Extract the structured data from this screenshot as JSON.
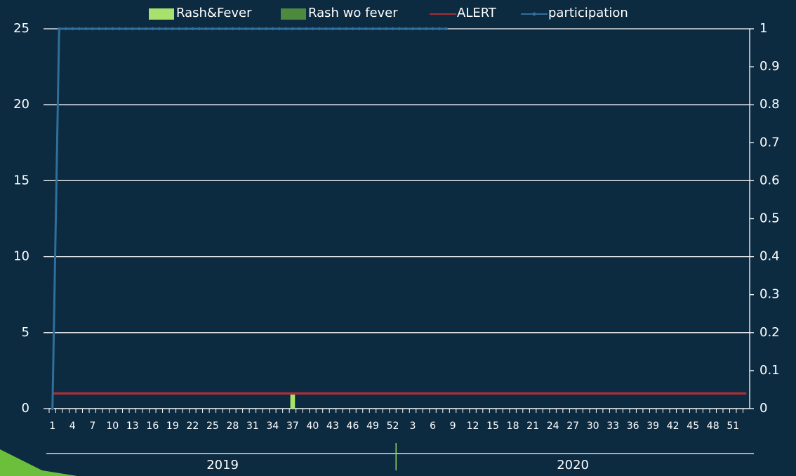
{
  "chart_data": {
    "type": "bar",
    "categories": [
      "1",
      null,
      null,
      "4",
      null,
      null,
      "7",
      null,
      null,
      "10",
      null,
      null,
      "13",
      null,
      null,
      "16",
      null,
      null,
      "19",
      null,
      null,
      "22",
      null,
      null,
      "25",
      null,
      null,
      "28",
      null,
      null,
      "31",
      null,
      null,
      "34",
      null,
      null,
      "37",
      null,
      null,
      "40",
      null,
      null,
      "43",
      null,
      null,
      "46",
      null,
      null,
      "49",
      null,
      null,
      "52",
      null,
      null,
      "3",
      null,
      null,
      "6",
      null,
      null,
      "9",
      null,
      null,
      "12",
      null,
      null,
      "15",
      null,
      null,
      "18",
      null,
      null,
      "21",
      null,
      null,
      "24",
      null,
      null,
      "27",
      null,
      null,
      "30",
      null,
      null,
      "33",
      null,
      null,
      "36",
      null,
      null,
      "39",
      null,
      null,
      "42",
      null,
      null,
      "45",
      null,
      null,
      "48",
      null,
      null,
      "51",
      null,
      null
    ],
    "groups": [
      {
        "label": "2019",
        "size": 52
      },
      {
        "label": "2020",
        "size": 53
      }
    ],
    "series": [
      {
        "name": "Rash&Fever",
        "type": "bar",
        "color": "#a8e26c",
        "values": [
          0,
          0,
          0,
          0,
          0,
          0,
          0,
          0,
          0,
          0,
          0,
          0,
          0,
          0,
          0,
          0,
          0,
          0,
          0,
          0,
          0,
          0,
          0,
          0,
          0,
          0,
          0,
          0,
          0,
          0,
          0,
          0,
          0,
          0,
          0,
          0,
          1,
          0,
          0,
          0,
          0,
          0,
          0,
          0,
          0,
          0,
          0,
          0,
          0,
          0,
          0,
          0,
          0,
          0,
          0,
          0,
          0,
          0,
          0,
          0,
          0,
          0,
          0,
          0,
          0,
          0,
          0,
          0,
          0,
          0,
          0,
          0,
          0,
          0,
          0,
          0,
          0,
          0,
          0,
          0,
          0,
          0,
          0,
          0,
          0,
          0,
          0,
          0,
          0,
          0,
          0,
          0,
          0,
          0,
          0,
          0,
          0,
          0,
          0,
          0,
          0,
          0,
          0,
          0,
          0
        ]
      },
      {
        "name": "Rash wo fever",
        "type": "bar",
        "color": "#4e8a3e",
        "values": [
          0,
          0,
          0,
          0,
          0,
          0,
          0,
          0,
          0,
          0,
          0,
          0,
          0,
          0,
          0,
          0,
          0,
          0,
          0,
          0,
          0,
          0,
          0,
          0,
          0,
          0,
          0,
          0,
          0,
          0,
          0,
          0,
          0,
          0,
          0,
          0,
          0,
          0,
          0,
          0,
          0,
          0,
          0,
          0,
          0,
          0,
          0,
          0,
          0,
          0,
          0,
          0,
          0,
          0,
          0,
          0,
          0,
          0,
          0,
          0,
          0,
          0,
          0,
          0,
          0,
          0,
          0,
          0,
          0,
          0,
          0,
          0,
          0,
          0,
          0,
          0,
          0,
          0,
          0,
          0,
          0,
          0,
          0,
          0,
          0,
          0,
          0,
          0,
          0,
          0,
          0,
          0,
          0,
          0,
          0,
          0,
          0,
          0,
          0,
          0,
          0,
          0,
          0,
          0,
          0
        ]
      },
      {
        "name": "ALERT",
        "type": "line",
        "color": "#a3303a",
        "values": [
          1,
          1,
          1,
          1,
          1,
          1,
          1,
          1,
          1,
          1,
          1,
          1,
          1,
          1,
          1,
          1,
          1,
          1,
          1,
          1,
          1,
          1,
          1,
          1,
          1,
          1,
          1,
          1,
          1,
          1,
          1,
          1,
          1,
          1,
          1,
          1,
          1,
          1,
          1,
          1,
          1,
          1,
          1,
          1,
          1,
          1,
          1,
          1,
          1,
          1,
          1,
          1,
          1,
          1,
          1,
          1,
          1,
          1,
          1,
          1,
          1,
          1,
          1,
          1,
          1,
          1,
          1,
          1,
          1,
          1,
          1,
          1,
          1,
          1,
          1,
          1,
          1,
          1,
          1,
          1,
          1,
          1,
          1,
          1,
          1,
          1,
          1,
          1,
          1,
          1,
          1,
          1,
          1,
          1,
          1,
          1,
          1,
          1,
          1,
          1,
          1,
          1,
          1,
          1,
          1
        ]
      },
      {
        "name": "participation",
        "type": "line",
        "axis": "y2",
        "markers": true,
        "color": "#2f6f9a",
        "values": [
          0,
          1,
          1,
          1,
          1,
          1,
          1,
          1,
          1,
          1,
          1,
          1,
          1,
          1,
          1,
          1,
          1,
          1,
          1,
          1,
          1,
          1,
          1,
          1,
          1,
          1,
          1,
          1,
          1,
          1,
          1,
          1,
          1,
          1,
          1,
          1,
          1,
          1,
          1,
          1,
          1,
          1,
          1,
          1,
          1,
          1,
          1,
          1,
          1,
          1,
          1,
          1,
          1,
          1,
          1,
          1,
          1,
          1,
          1,
          1,
          null,
          null,
          null,
          null,
          null,
          null,
          null,
          null,
          null,
          null,
          null,
          null,
          null,
          null,
          null,
          null,
          null,
          null,
          null,
          null,
          null,
          null,
          null,
          null,
          null,
          null,
          null,
          null,
          null,
          null,
          null,
          null,
          null,
          null,
          null,
          null,
          null,
          null,
          null,
          null,
          null,
          null,
          null,
          null,
          null
        ]
      }
    ],
    "ylim": [
      0,
      25
    ],
    "yticks": [
      0,
      5,
      10,
      15,
      20,
      25
    ],
    "y2lim": [
      0,
      1
    ],
    "y2ticks": [
      0,
      0.1,
      0.2,
      0.3,
      0.4,
      0.5,
      0.6,
      0.7,
      0.8,
      0.9,
      1
    ],
    "grid": true,
    "legend": "top"
  }
}
